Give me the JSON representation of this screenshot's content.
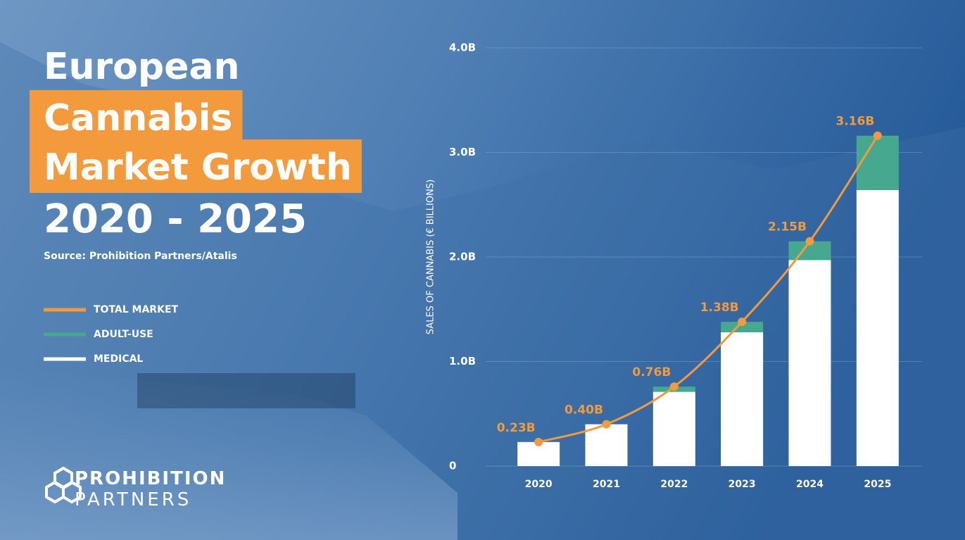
{
  "chart_data": {
    "type": "bar",
    "stacked": true,
    "title_lines": [
      "European",
      "Cannabis",
      "Market Growth",
      "2020 - 2025"
    ],
    "source": "Source: Prohibition Partners/Atalis",
    "logo": [
      "PROHIBITION",
      "PARTNERS"
    ],
    "y_label": "SALES OF CANNABIS (€ BILLIONS)",
    "categories": [
      "2020",
      "2021",
      "2022",
      "2023",
      "2024",
      "2025"
    ],
    "ylim": [
      0,
      4
    ],
    "yticks": [
      0,
      {
        "value": 1,
        "label": "1.0B"
      },
      {
        "value": 2,
        "label": "2.0B"
      },
      {
        "value": 3,
        "label": "3.0B"
      },
      {
        "value": 4,
        "label": "4.0B"
      }
    ],
    "grid": true,
    "series": [
      {
        "name": "TOTAL MARKET",
        "type": "line",
        "color": "#f39a3c",
        "values": [
          0.23,
          0.4,
          0.76,
          1.38,
          2.15,
          3.16
        ],
        "value_labels": [
          "0.23B",
          "0.40B",
          "0.76B",
          "1.38B",
          "2.15B",
          "3.16B"
        ]
      },
      {
        "name": "ADULT-USE",
        "type": "bar",
        "color": "#46a88f",
        "values": [
          0,
          0,
          0.05,
          0.1,
          0.18,
          0.52
        ]
      },
      {
        "name": "MEDICAL",
        "type": "bar",
        "color": "#ffffff",
        "values": [
          0.23,
          0.4,
          0.71,
          1.28,
          1.97,
          2.64
        ]
      }
    ]
  }
}
